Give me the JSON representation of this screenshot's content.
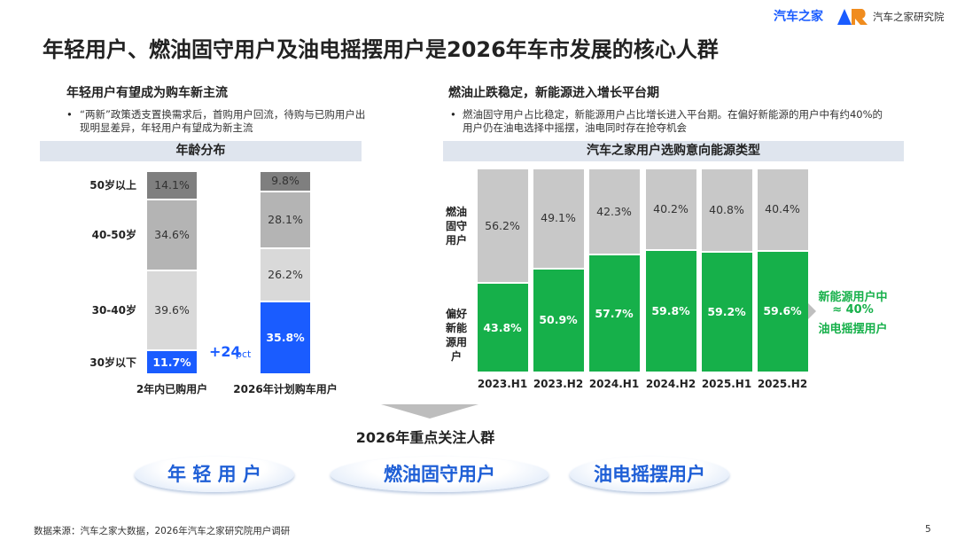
{
  "header": {
    "title": "年轻用户、燃油固守用户及油电摇摆用户是2026年车市发展的核心人群",
    "brand": "汽车之家",
    "institute": "汽车之家研究院"
  },
  "left": {
    "heading": "年轻用户有望成为购车新主流",
    "bullet": "“两新”政策透支置换需求后，首购用户回流，待购与已购用户出现明显差异，年轻用户有望成为新主流"
  },
  "right": {
    "heading": "燃油止跌稳定，新能源进入增长平台期",
    "bullet": "燃油固守用户占比稳定，新能源用户占比增长进入平台期。在偏好新能源的用户中有约40%的用户仍在油电选择中摇摆，油电同时存在抢夺机会"
  },
  "chart_data": [
    {
      "type": "stacked_bar",
      "title": "年龄分布",
      "categories": [
        "2年内已购用户",
        "2026年计划购车用户"
      ],
      "series": [
        {
          "name": "30岁以下",
          "color": "#1a5cff",
          "values": [
            11.7,
            35.8
          ],
          "value_labels": [
            "11.7%",
            "35.8%"
          ]
        },
        {
          "name": "30-40岁",
          "color": "#d9d9d9",
          "values": [
            39.6,
            26.2
          ],
          "value_labels": [
            "39.6%",
            "26.2%"
          ]
        },
        {
          "name": "40-50岁",
          "color": "#b4b4b4",
          "values": [
            34.6,
            28.1
          ],
          "value_labels": [
            "34.6%",
            "28.1%"
          ]
        },
        {
          "name": "50岁以上",
          "color": "#7f7f7f",
          "values": [
            14.1,
            9.8
          ],
          "value_labels": [
            "14.1%",
            "9.8%"
          ]
        }
      ],
      "annotation": [
        "+24",
        "pct"
      ]
    },
    {
      "type": "stacked_bar",
      "title": "汽车之家用户选购意向能源类型",
      "categories": [
        "2023.H1",
        "2023.H2",
        "2024.H1",
        "2024.H2",
        "2025.H1",
        "2025.H2"
      ],
      "series": [
        {
          "name": "偏好新能源用户",
          "color": "#16b04a",
          "values": [
            43.8,
            50.9,
            57.7,
            59.8,
            59.2,
            59.6
          ],
          "value_labels": [
            "43.8%",
            "50.9%",
            "57.7%",
            "59.8%",
            "59.2%",
            "59.6%"
          ]
        },
        {
          "name": "燃油固守用户",
          "color": "#c8c8c8",
          "values": [
            56.2,
            49.1,
            42.3,
            40.2,
            40.8,
            40.4
          ],
          "value_labels": [
            "56.2%",
            "49.1%",
            "42.3%",
            "40.2%",
            "40.8%",
            "40.4%"
          ]
        }
      ],
      "annotation": [
        "新能源用户中",
        "≈ 40%",
        "油电摇摆用户"
      ]
    }
  ],
  "focus": {
    "heading": "2026年重点关注人群",
    "groups": [
      "年 轻 用 户",
      "燃油固守用户",
      "油电摇摆用户"
    ]
  },
  "footer": {
    "source": "数据来源：汽车之家大数据，2026年汽车之家研究院用户调研",
    "page": "5"
  }
}
